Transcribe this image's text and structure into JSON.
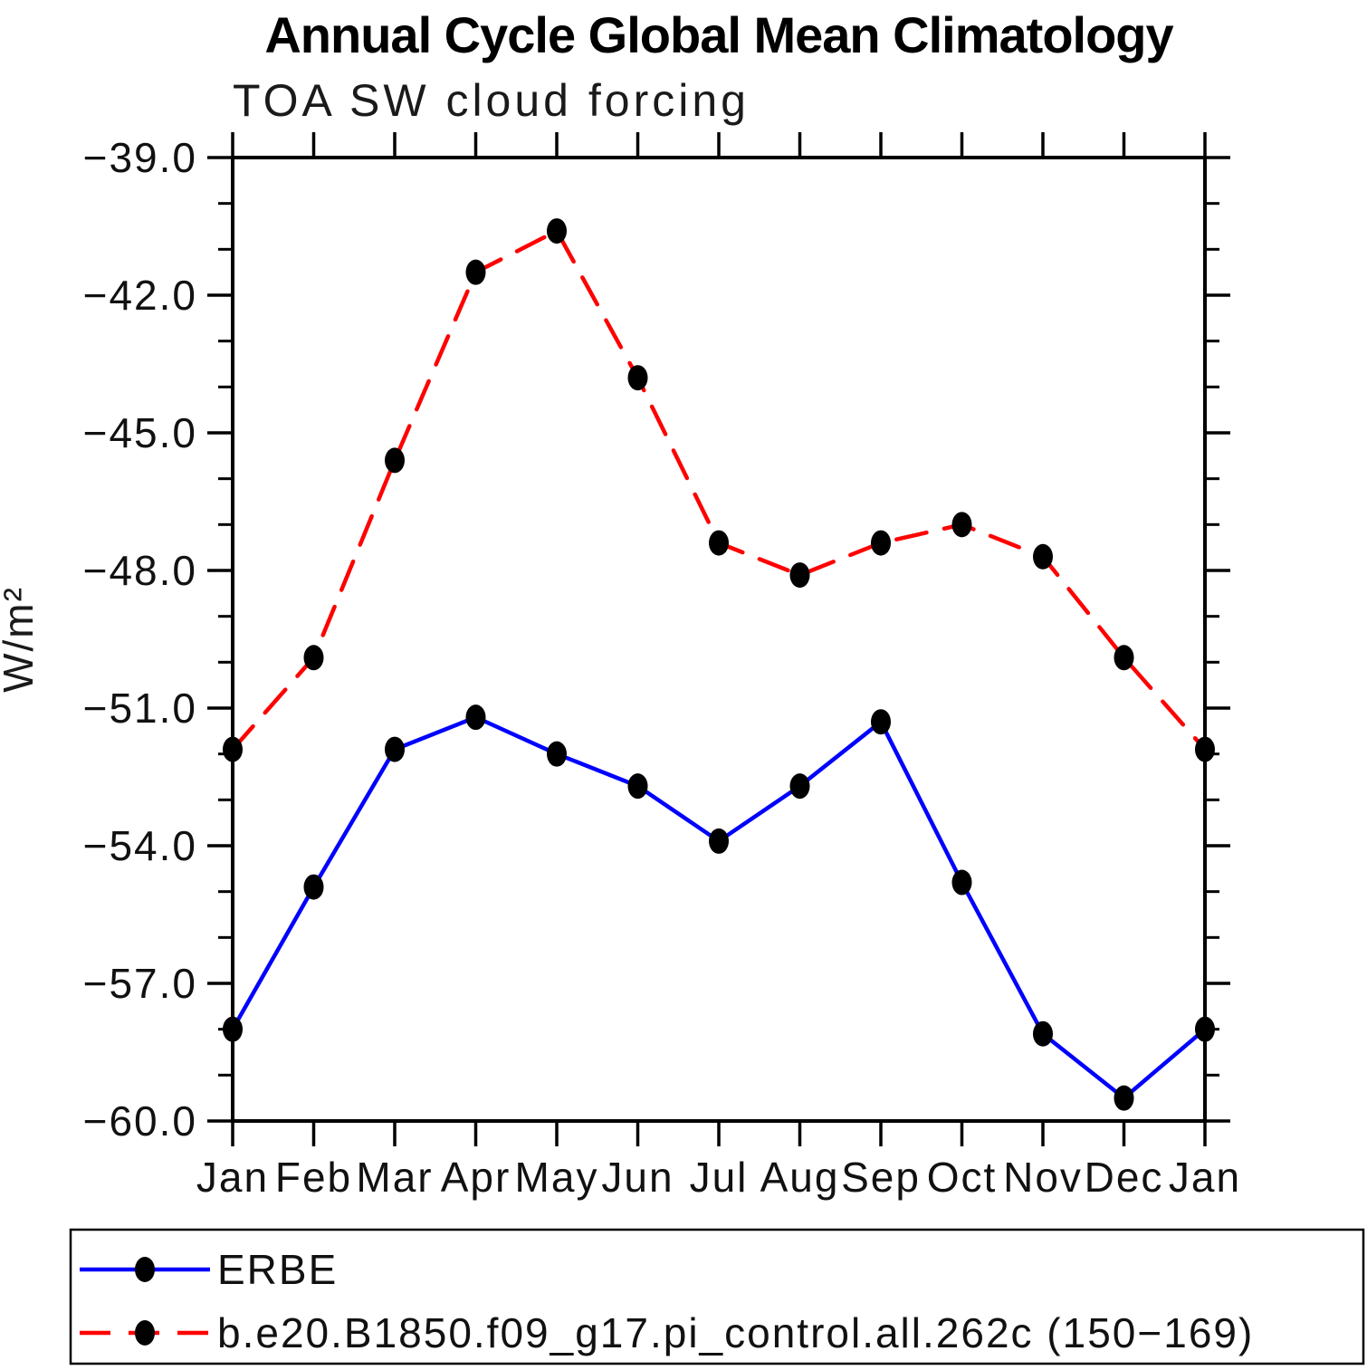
{
  "title": "Annual Cycle Global Mean Climatology",
  "subtitle": "TOA SW cloud forcing",
  "y_axis_label": "W/m²",
  "chart_data": {
    "type": "line",
    "title": "Annual Cycle Global Mean Climatology",
    "subtitle": "TOA SW cloud forcing",
    "xlabel": "",
    "ylabel": "W/m²",
    "categories": [
      "Jan",
      "Feb",
      "Mar",
      "Apr",
      "May",
      "Jun",
      "Jul",
      "Aug",
      "Sep",
      "Oct",
      "Nov",
      "Dec",
      "Jan"
    ],
    "ylim": [
      -60.0,
      -39.0
    ],
    "y_major_ticks": [
      -39.0,
      -42.0,
      -45.0,
      -48.0,
      -51.0,
      -54.0,
      -57.0,
      -60.0
    ],
    "y_minor_tick_interval": 1.0,
    "grid": false,
    "legend_position": "bottom-left-box",
    "series": [
      {
        "name": "ERBE",
        "color": "#0000ff",
        "style": "solid",
        "marker": "filled-circle",
        "marker_color": "#000000",
        "values": [
          -58.0,
          -54.9,
          -51.9,
          -51.2,
          -52.0,
          -52.7,
          -53.9,
          -52.7,
          -51.3,
          -54.8,
          -58.1,
          -59.5,
          -58.0
        ]
      },
      {
        "name": "b.e20.B1850.f09_g17.pi_control.all.262c (150−169)",
        "color": "#ff0000",
        "style": "dashed",
        "marker": "filled-circle",
        "marker_color": "#000000",
        "values": [
          -51.9,
          -49.9,
          -45.6,
          -41.5,
          -40.6,
          -43.8,
          -47.4,
          -48.1,
          -47.4,
          -47.0,
          -47.7,
          -49.9,
          -51.9
        ]
      }
    ]
  }
}
